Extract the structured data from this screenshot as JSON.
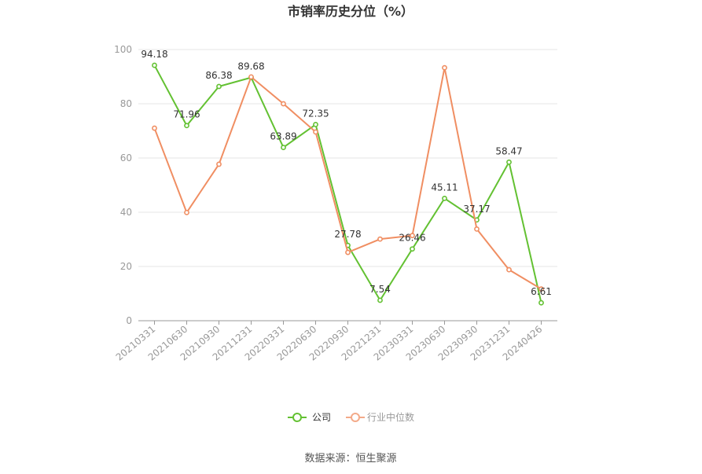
{
  "chart_data": {
    "type": "line",
    "title": "市销率历史分位（%）",
    "xlabel": "",
    "ylabel": "",
    "categories": [
      "20210331",
      "20210630",
      "20210930",
      "20211231",
      "20220331",
      "20220630",
      "20220930",
      "20221231",
      "20230331",
      "20230630",
      "20230930",
      "20231231",
      "20240426"
    ],
    "ylim": [
      0,
      100
    ],
    "yticks": [
      0,
      20,
      40,
      60,
      80,
      100
    ],
    "grid": true,
    "legend_position": "bottom-center",
    "series": [
      {
        "name": "公司",
        "color": "#63c132",
        "show_labels": true,
        "values": [
          94.18,
          71.96,
          86.38,
          89.68,
          63.89,
          72.35,
          27.78,
          7.54,
          26.46,
          45.11,
          37.17,
          58.47,
          6.61
        ]
      },
      {
        "name": "行业中位数",
        "color": "#f08e62",
        "show_labels": false,
        "values": [
          71.0,
          39.9,
          57.7,
          89.9,
          80.0,
          69.6,
          25.2,
          30.1,
          31.4,
          93.3,
          33.8,
          18.8,
          11.7
        ]
      }
    ]
  },
  "source": "数据来源：恒生聚源"
}
